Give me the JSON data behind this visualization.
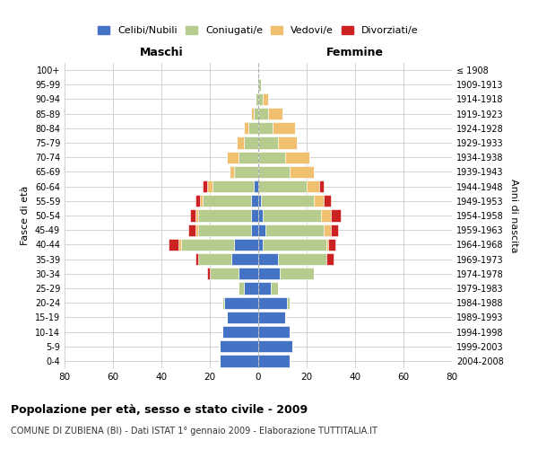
{
  "age_groups": [
    "0-4",
    "5-9",
    "10-14",
    "15-19",
    "20-24",
    "25-29",
    "30-34",
    "35-39",
    "40-44",
    "45-49",
    "50-54",
    "55-59",
    "60-64",
    "65-69",
    "70-74",
    "75-79",
    "80-84",
    "85-89",
    "90-94",
    "95-99",
    "100+"
  ],
  "birth_years": [
    "2004-2008",
    "1999-2003",
    "1994-1998",
    "1989-1993",
    "1984-1988",
    "1979-1983",
    "1974-1978",
    "1969-1973",
    "1964-1968",
    "1959-1963",
    "1954-1958",
    "1949-1953",
    "1944-1948",
    "1939-1943",
    "1934-1938",
    "1929-1933",
    "1924-1928",
    "1919-1923",
    "1914-1918",
    "1909-1913",
    "≤ 1908"
  ],
  "male": {
    "celibe": [
      16,
      16,
      15,
      13,
      14,
      6,
      8,
      11,
      10,
      3,
      3,
      3,
      2,
      0,
      0,
      0,
      0,
      0,
      0,
      0,
      0
    ],
    "coniugato": [
      0,
      0,
      0,
      0,
      1,
      2,
      12,
      14,
      22,
      22,
      22,
      20,
      17,
      10,
      8,
      6,
      4,
      2,
      1,
      0,
      0
    ],
    "vedovo": [
      0,
      0,
      0,
      0,
      0,
      0,
      0,
      0,
      1,
      1,
      1,
      1,
      2,
      2,
      5,
      3,
      2,
      1,
      0,
      0,
      0
    ],
    "divorziato": [
      0,
      0,
      0,
      0,
      0,
      0,
      1,
      1,
      4,
      3,
      2,
      2,
      2,
      0,
      0,
      0,
      0,
      0,
      0,
      0,
      0
    ]
  },
  "female": {
    "nubile": [
      13,
      14,
      13,
      11,
      12,
      5,
      9,
      8,
      2,
      3,
      2,
      1,
      0,
      0,
      0,
      0,
      0,
      0,
      0,
      0,
      0
    ],
    "coniugata": [
      0,
      0,
      0,
      0,
      1,
      3,
      14,
      20,
      26,
      24,
      24,
      22,
      20,
      13,
      11,
      8,
      6,
      4,
      2,
      1,
      0
    ],
    "vedova": [
      0,
      0,
      0,
      0,
      0,
      0,
      0,
      0,
      1,
      3,
      4,
      4,
      5,
      10,
      10,
      8,
      9,
      6,
      2,
      0,
      0
    ],
    "divorziata": [
      0,
      0,
      0,
      0,
      0,
      0,
      0,
      3,
      3,
      3,
      4,
      3,
      2,
      0,
      0,
      0,
      0,
      0,
      0,
      0,
      0
    ]
  },
  "colors": {
    "celibe": "#4472c4",
    "coniugato": "#b5cc8e",
    "vedovo": "#f0c070",
    "divorziato": "#cc2222"
  },
  "xlim": 80,
  "title": "Popolazione per età, sesso e stato civile - 2009",
  "subtitle": "COMUNE DI ZUBIENA (BI) - Dati ISTAT 1° gennaio 2009 - Elaborazione TUTTITALIA.IT",
  "ylabel_left": "Fasce di età",
  "ylabel_right": "Anni di nascita",
  "legend_labels": [
    "Celibi/Nubili",
    "Coniugati/e",
    "Vedovi/e",
    "Divorziati/e"
  ],
  "legend_colors": [
    "#4472c4",
    "#b5cc8e",
    "#f0c070",
    "#cc2222"
  ]
}
